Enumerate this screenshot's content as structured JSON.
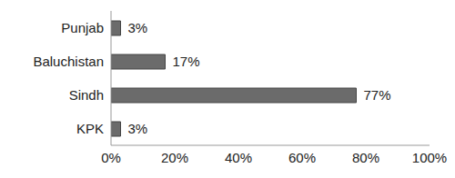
{
  "chart_data": {
    "type": "bar",
    "orientation": "horizontal",
    "categories": [
      "Punjab",
      "Baluchistan",
      "Sindh",
      "KPK"
    ],
    "values": [
      3,
      17,
      77,
      3
    ],
    "value_labels": [
      "3%",
      "17%",
      "77%",
      "3%"
    ],
    "data_labels": true,
    "color": "#6b6b6b",
    "xlim": [
      0,
      100
    ],
    "xticks": [
      {
        "value": 0,
        "label": "0%"
      },
      {
        "value": 20,
        "label": "20%"
      },
      {
        "value": 40,
        "label": "40%"
      },
      {
        "value": 60,
        "label": "60%"
      },
      {
        "value": 80,
        "label": "80%"
      },
      {
        "value": 100,
        "label": "100%"
      }
    ],
    "grid": false
  }
}
